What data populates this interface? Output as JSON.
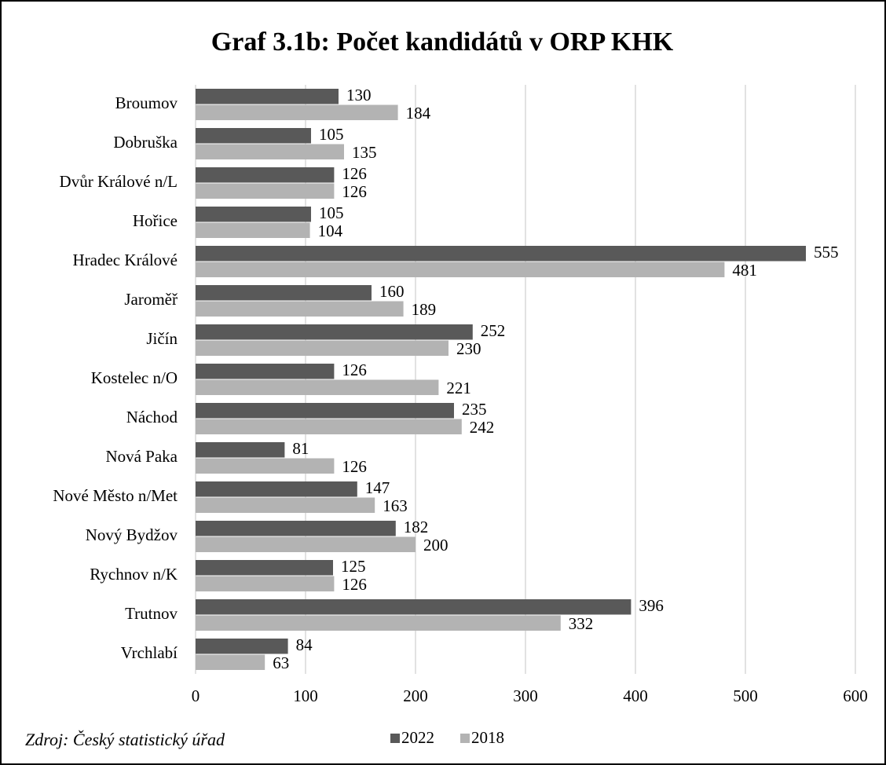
{
  "chart_data": {
    "type": "barh",
    "title": "Graf 3.1b: Počet kandidátů v ORP KHK",
    "categories": [
      "Broumov",
      "Dobruška",
      "Dvůr Králové n/L",
      "Hořice",
      "Hradec Králové",
      "Jaroměř",
      "Jičín",
      "Kostelec n/O",
      "Náchod",
      "Nová Paka",
      "Nové Město n/Met",
      "Nový Bydžov",
      "Rychnov n/K",
      "Trutnov",
      "Vrchlabí"
    ],
    "series": [
      {
        "name": "2022",
        "color": "#595959",
        "values": [
          130,
          105,
          126,
          105,
          555,
          160,
          252,
          126,
          235,
          81,
          147,
          182,
          125,
          396,
          84
        ]
      },
      {
        "name": "2018",
        "color": "#b3b3b3",
        "values": [
          184,
          135,
          126,
          104,
          481,
          189,
          230,
          221,
          242,
          126,
          163,
          200,
          126,
          332,
          63
        ]
      }
    ],
    "xlim": [
      0,
      600
    ],
    "xticks": [
      0,
      100,
      200,
      300,
      400,
      500,
      600
    ],
    "grid": true,
    "legend": "bottom",
    "source": "Zdroj: Český statistický úřad"
  }
}
